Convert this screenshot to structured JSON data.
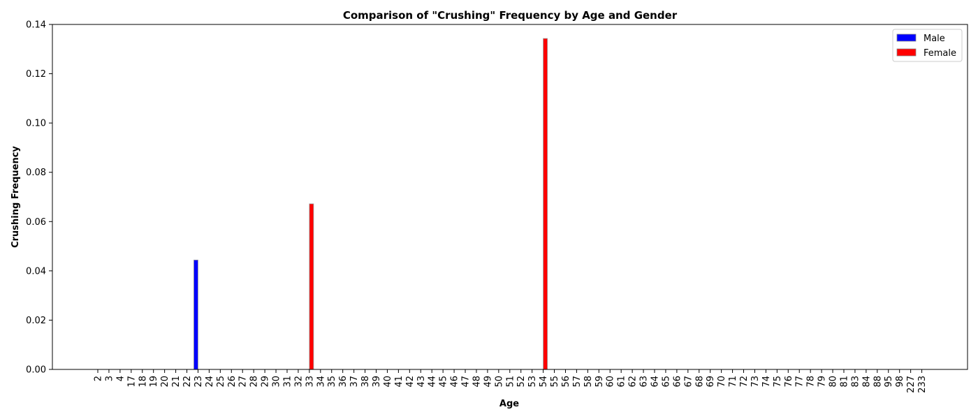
{
  "chart_data": {
    "type": "bar",
    "title": "Comparison of \"Crushing\" Frequency by Age and Gender",
    "xlabel": "Age",
    "ylabel": "Crushing Frequency",
    "ylim": [
      0,
      0.14
    ],
    "yticks": [
      "0.00",
      "0.02",
      "0.04",
      "0.06",
      "0.08",
      "0.10",
      "0.12",
      "0.14"
    ],
    "ytick_values": [
      0,
      0.02,
      0.04,
      0.06,
      0.08,
      0.1,
      0.12,
      0.14
    ],
    "legend_position": "top-right",
    "grid": false,
    "categories": [
      "2",
      "3",
      "4",
      "17",
      "18",
      "19",
      "20",
      "21",
      "22",
      "23",
      "24",
      "25",
      "26",
      "27",
      "28",
      "29",
      "30",
      "31",
      "32",
      "33",
      "34",
      "35",
      "36",
      "37",
      "38",
      "39",
      "40",
      "41",
      "42",
      "43",
      "44",
      "45",
      "46",
      "47",
      "48",
      "49",
      "50",
      "51",
      "52",
      "53",
      "54",
      "55",
      "56",
      "57",
      "58",
      "59",
      "60",
      "61",
      "62",
      "63",
      "64",
      "65",
      "66",
      "67",
      "68",
      "69",
      "70",
      "71",
      "72",
      "73",
      "74",
      "75",
      "76",
      "77",
      "78",
      "79",
      "80",
      "81",
      "83",
      "84",
      "88",
      "95",
      "98",
      "227",
      "233"
    ],
    "series": [
      {
        "name": "Male",
        "color": "#0000ff",
        "values": [
          0,
          0,
          0,
          0,
          0,
          0,
          0,
          0,
          0,
          0.0444,
          0,
          0,
          0,
          0,
          0,
          0,
          0,
          0,
          0,
          0,
          0,
          0,
          0,
          0,
          0,
          0,
          0,
          0,
          0,
          0,
          0,
          0,
          0,
          0,
          0,
          0,
          0,
          0,
          0,
          0,
          0,
          0,
          0,
          0,
          0,
          0,
          0,
          0,
          0,
          0,
          0,
          0,
          0,
          0,
          0,
          0,
          0,
          0,
          0,
          0,
          0,
          0,
          0,
          0,
          0,
          0,
          0,
          0,
          0,
          0,
          0,
          0,
          0,
          0,
          0
        ]
      },
      {
        "name": "Female",
        "color": "#ff0000",
        "values": [
          0,
          0,
          0,
          0,
          0,
          0,
          0,
          0,
          0,
          0,
          0,
          0,
          0,
          0,
          0,
          0,
          0,
          0,
          0,
          0.0672,
          0,
          0,
          0,
          0,
          0,
          0,
          0,
          0,
          0,
          0,
          0,
          0,
          0,
          0,
          0,
          0,
          0,
          0,
          0,
          0,
          0.1343,
          0,
          0,
          0,
          0,
          0,
          0,
          0,
          0,
          0,
          0,
          0,
          0,
          0,
          0,
          0,
          0,
          0,
          0,
          0,
          0,
          0,
          0,
          0,
          0,
          0,
          0,
          0,
          0,
          0,
          0,
          0,
          0,
          0,
          0
        ]
      }
    ]
  }
}
